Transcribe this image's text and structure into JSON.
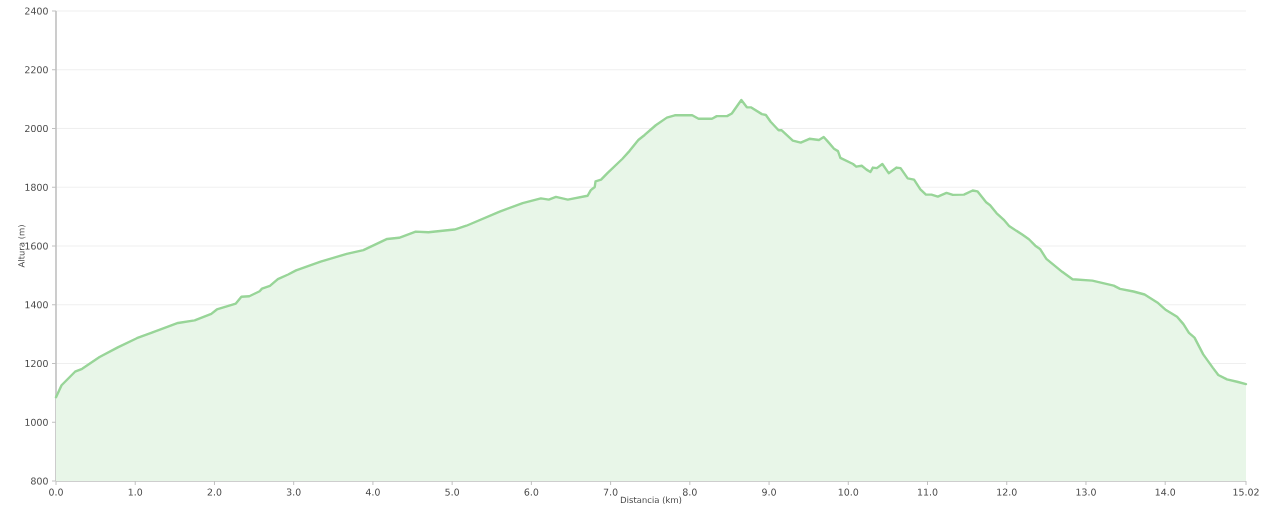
{
  "chart_data": {
    "type": "area",
    "xlabel": "Distancia   (km)",
    "ylabel": "Altura (m)",
    "x": [
      0,
      0.07,
      0.24,
      0.33,
      0.55,
      0.78,
      1.02,
      1.21,
      1.54,
      1.75,
      1.96,
      2.03,
      2.27,
      2.34,
      2.44,
      2.57,
      2.6,
      2.7,
      2.8,
      2.93,
      3.03,
      3.34,
      3.67,
      3.88,
      4.18,
      4.33,
      4.54,
      4.7,
      5.03,
      5.18,
      5.6,
      5.89,
      6.12,
      6.22,
      6.31,
      6.46,
      6.71,
      6.75,
      6.8,
      6.81,
      6.88,
      6.96,
      7.15,
      7.24,
      7.35,
      7.43,
      7.57,
      7.71,
      7.81,
      8.03,
      8.11,
      8.28,
      8.34,
      8.47,
      8.53,
      8.65,
      8.72,
      8.77,
      8.91,
      8.96,
      9.02,
      9.12,
      9.16,
      9.3,
      9.4,
      9.51,
      9.63,
      9.69,
      9.74,
      9.82,
      9.87,
      9.9,
      10.06,
      10.1,
      10.17,
      10.23,
      10.28,
      10.31,
      10.36,
      10.43,
      10.51,
      10.61,
      10.66,
      10.75,
      10.83,
      10.91,
      10.98,
      11.05,
      11.13,
      11.24,
      11.32,
      11.46,
      11.57,
      11.63,
      11.74,
      11.79,
      11.87,
      11.96,
      12.03,
      12.2,
      12.28,
      12.36,
      12.42,
      12.5,
      12.7,
      12.83,
      13.08,
      13.35,
      13.43,
      13.6,
      13.74,
      13.9,
      14.01,
      14.15,
      14.23,
      14.3,
      14.37,
      14.48,
      14.6,
      14.67,
      14.78,
      14.92,
      15.02
    ],
    "series": [
      {
        "color": "#98d598",
        "values": [
          1085,
          1126,
          1172,
          1182,
          1222,
          1255,
          1286,
          1305,
          1338,
          1347,
          1369,
          1384,
          1404,
          1427,
          1429,
          1446,
          1455,
          1464,
          1487,
          1503,
          1517,
          1547,
          1573,
          1586,
          1624,
          1628,
          1649,
          1647,
          1656,
          1669,
          1717,
          1746,
          1762,
          1758,
          1767,
          1758,
          1771,
          1790,
          1801,
          1820,
          1826,
          1848,
          1897,
          1924,
          1961,
          1978,
          2011,
          2037,
          2045,
          2045,
          2033,
          2033,
          2042,
          2042,
          2051,
          2097,
          2072,
          2072,
          2049,
          2046,
          2023,
          1994,
          1994,
          1959,
          1952,
          1965,
          1961,
          1971,
          1956,
          1931,
          1923,
          1900,
          1879,
          1870,
          1873,
          1860,
          1852,
          1867,
          1865,
          1879,
          1848,
          1867,
          1865,
          1830,
          1826,
          1793,
          1775,
          1775,
          1768,
          1781,
          1774,
          1775,
          1789,
          1786,
          1749,
          1739,
          1712,
          1690,
          1668,
          1638,
          1623,
          1601,
          1590,
          1556,
          1512,
          1487,
          1482,
          1465,
          1454,
          1445,
          1435,
          1408,
          1382,
          1359,
          1334,
          1304,
          1288,
          1231,
          1186,
          1161,
          1146,
          1137,
          1130
        ]
      }
    ],
    "xlim": [
      0,
      15.02
    ],
    "ylim": [
      800,
      2400
    ],
    "xticks": [
      {
        "value": 0,
        "label": "0.0"
      },
      {
        "value": 1,
        "label": "1.0"
      },
      {
        "value": 2,
        "label": "2.0"
      },
      {
        "value": 3,
        "label": "3.0"
      },
      {
        "value": 4,
        "label": "4.0"
      },
      {
        "value": 5,
        "label": "5.0"
      },
      {
        "value": 6,
        "label": "6.0"
      },
      {
        "value": 7,
        "label": "7.0"
      },
      {
        "value": 8,
        "label": "8.0"
      },
      {
        "value": 9,
        "label": "9.0"
      },
      {
        "value": 10,
        "label": "10.0"
      },
      {
        "value": 11,
        "label": "11.0"
      },
      {
        "value": 12,
        "label": "12.0"
      },
      {
        "value": 13,
        "label": "13.0"
      },
      {
        "value": 14,
        "label": "14.0"
      },
      {
        "value": 15.02,
        "label": "15.02"
      }
    ],
    "yticks": [
      800,
      1000,
      1200,
      1400,
      1600,
      1800,
      2000,
      2200,
      2400
    ],
    "grid": "y"
  }
}
